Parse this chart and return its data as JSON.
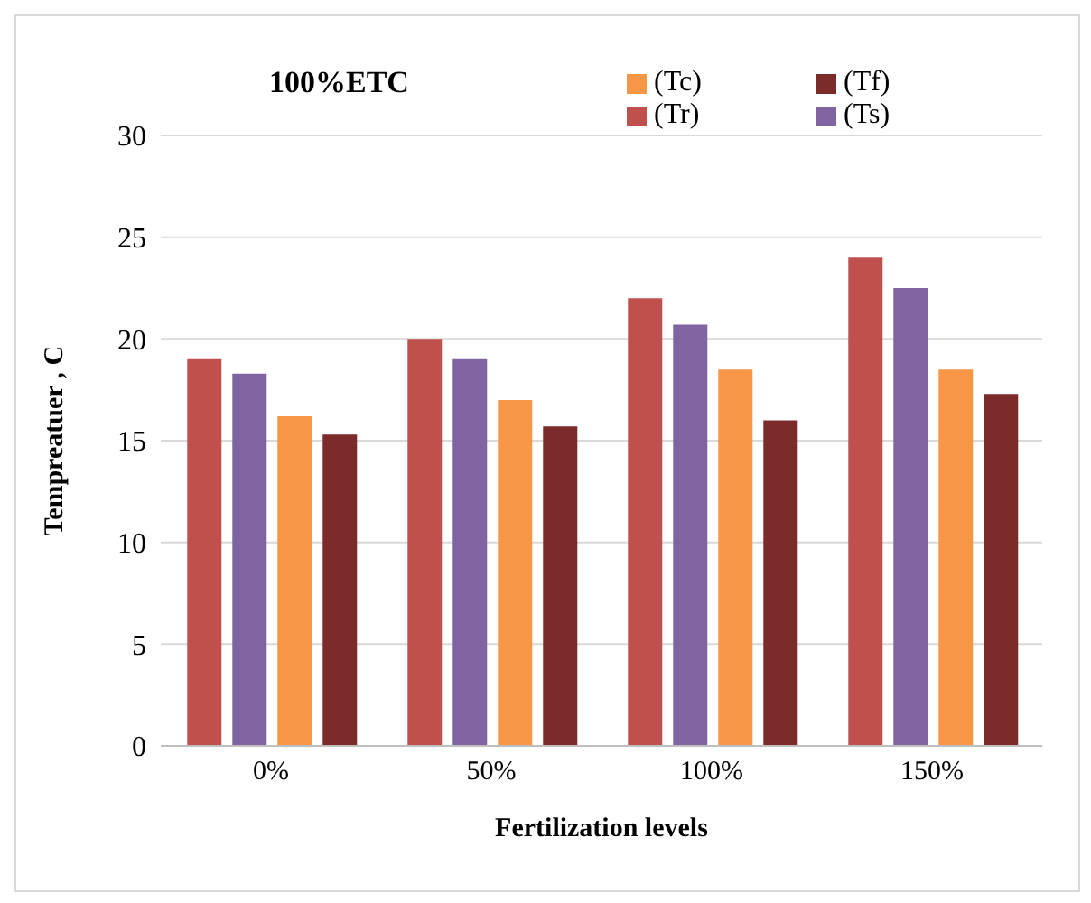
{
  "chart_data": {
    "type": "bar",
    "title": "100%ETC",
    "xlabel": "Fertilization levels",
    "ylabel": "Tempreatuer , C",
    "categories": [
      "0%",
      "50%",
      "100%",
      "150%"
    ],
    "series": [
      {
        "name": "(Tr)",
        "color": "#c0504d",
        "values": [
          19,
          20,
          22,
          24
        ]
      },
      {
        "name": "(Ts)",
        "color": "#8064a2",
        "values": [
          18.3,
          19,
          20.7,
          22.5
        ]
      },
      {
        "name": "(Tc)",
        "color": "#f79646",
        "values": [
          16.2,
          17,
          18.5,
          18.5
        ]
      },
      {
        "name": "(Tf)",
        "color": "#7b2c2a",
        "values": [
          15.3,
          15.7,
          16,
          17.3
        ]
      }
    ],
    "ylim": [
      0,
      30
    ],
    "yticks": [
      0,
      5,
      10,
      15,
      20,
      25,
      30
    ],
    "grid": "y",
    "legend": "top right"
  }
}
